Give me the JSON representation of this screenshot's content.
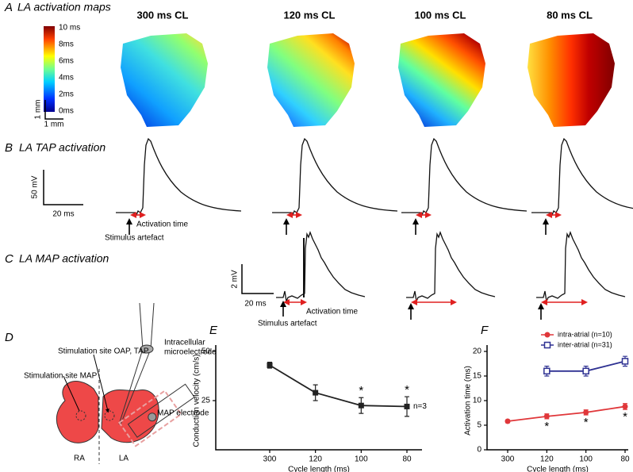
{
  "panel_a": {
    "letter": "A",
    "title": "LA activation maps",
    "map_titles": [
      "300 ms CL",
      "120 ms CL",
      "100 ms CL",
      "80 ms CL"
    ],
    "colorbar_labels": [
      "10 ms",
      "8ms",
      "6ms",
      "4ms",
      "2ms",
      "0ms"
    ],
    "scale_labels": [
      "1 mm",
      "1 mm"
    ]
  },
  "panel_b": {
    "letter": "B",
    "title": "LA  TAP activation",
    "scale_labels": [
      "50 mV",
      "20 ms"
    ],
    "activation_label": "Activation time",
    "stimulus_label": "Stimulus artefact"
  },
  "panel_c": {
    "letter": "C",
    "title": "LA MAP activation",
    "scale_labels": [
      "2 mV",
      "20 ms"
    ],
    "activation_label": "Activation time",
    "stimulus_label": "Stimulus artefact"
  },
  "panel_d": {
    "letter": "D",
    "stim_oap_label": "Stimulation site OAP, TAP",
    "microelectrode_label": [
      "Intracellular",
      "microelectrode"
    ],
    "stim_map_label": "Stimulation site MAP",
    "map_electrode_label": "MAP electrode",
    "chamber_labels": [
      "RA",
      "LA"
    ]
  },
  "chart_data": [
    {
      "type": "line",
      "panel_letter": "E",
      "categories": [
        "300",
        "120",
        "100",
        "80"
      ],
      "xlabel": "Cycle length (ms)",
      "ylabel": "Conduction velocity (cm/s)",
      "ylim": [
        0,
        50
      ],
      "yticks": [
        25,
        50
      ],
      "values": [
        43,
        29,
        22.5,
        22
      ],
      "errors": [
        1.5,
        4,
        4,
        5
      ],
      "color": "#222222",
      "annotations": [
        "*",
        "*",
        "n=3"
      ]
    },
    {
      "type": "line",
      "panel_letter": "F",
      "categories": [
        "300",
        "120",
        "100",
        "80"
      ],
      "xlabel": "Cycle length (ms)",
      "ylabel": "Activation time (ms)",
      "ylim": [
        0,
        20
      ],
      "yticks": [
        0,
        5,
        10,
        15,
        20
      ],
      "legend": "upper-right",
      "series": [
        {
          "name": "intra-atrial (n=10)",
          "color": "#e0373a",
          "marker": "circle",
          "values": [
            5.8,
            6.8,
            7.6,
            8.8
          ],
          "errors": [
            0.3,
            0.5,
            0.5,
            0.6
          ]
        },
        {
          "name": "inter-atrial (n=31)",
          "color": "#2e3192",
          "marker": "open-square",
          "values": [
            null,
            16,
            16,
            18
          ],
          "errors": [
            null,
            1,
            1,
            1
          ]
        }
      ],
      "annotations": [
        "*",
        "*",
        "*"
      ]
    }
  ]
}
